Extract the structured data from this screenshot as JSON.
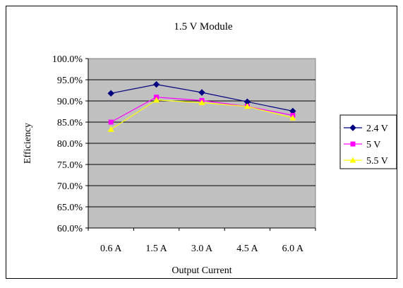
{
  "chart_data": {
    "type": "line",
    "title": "1.5 V Module",
    "xlabel": "Output Current",
    "ylabel": "Efficiency",
    "categories": [
      "0.6 A",
      "1.5 A",
      "3.0 A",
      "4.5 A",
      "6.0 A"
    ],
    "ylim": [
      60.0,
      100.0
    ],
    "ytick_step": 5.0,
    "ytick_labels": [
      "60.0%",
      "65.0%",
      "70.0%",
      "75.0%",
      "80.0%",
      "85.0%",
      "90.0%",
      "95.0%",
      "100.0%"
    ],
    "grid": true,
    "legend_position": "right",
    "plot_background": "#c0c0c0",
    "series": [
      {
        "name": "2.4 V",
        "color": "#000080",
        "marker": "diamond",
        "values": [
          91.8,
          93.9,
          92.0,
          89.8,
          87.6
        ]
      },
      {
        "name": "5 V",
        "color": "#ff00ff",
        "marker": "square",
        "values": [
          85.0,
          90.9,
          90.1,
          88.7,
          86.6
        ]
      },
      {
        "name": "5.5 V",
        "color": "#ffff00",
        "marker": "triangle",
        "values": [
          83.3,
          90.2,
          89.6,
          88.7,
          86.0
        ]
      }
    ]
  }
}
